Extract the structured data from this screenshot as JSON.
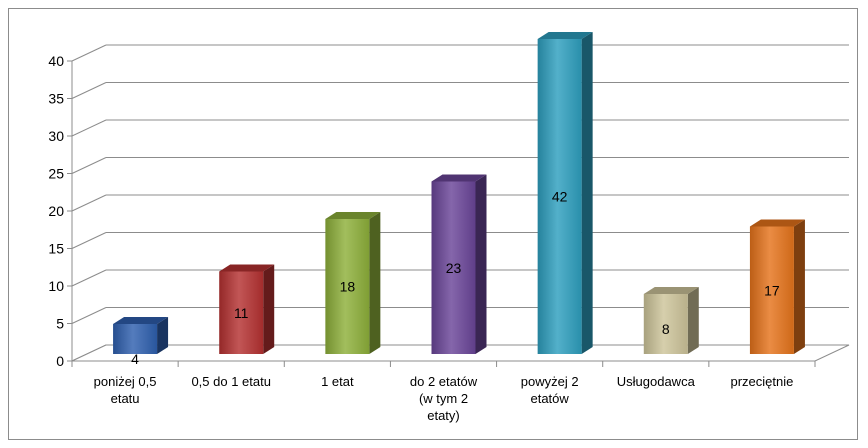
{
  "chart_data": {
    "type": "bar",
    "style": "3d-column",
    "categories": [
      [
        "poniżej 0,5",
        "etatu"
      ],
      [
        "0,5 do 1 etatu"
      ],
      [
        "1 etat"
      ],
      [
        "do 2 etatów",
        "(w tym 2",
        "etaty)"
      ],
      [
        "powyżej 2",
        "etatów"
      ],
      [
        "Usługodawca"
      ],
      [
        "przeciętnie"
      ]
    ],
    "values": [
      4,
      11,
      18,
      23,
      42,
      8,
      17
    ],
    "data_labels": [
      "4",
      "11",
      "18",
      "23",
      "42",
      "8",
      "17"
    ],
    "colors": [
      "#2e5fae",
      "#b53131",
      "#8db03a",
      "#6a4598",
      "#2d9fbe",
      "#cdc49a",
      "#e5731b"
    ],
    "ylim": [
      0,
      40
    ],
    "yticks": [
      0,
      5,
      10,
      15,
      20,
      25,
      30,
      35,
      40
    ],
    "grid": true,
    "legend": "none",
    "title": "",
    "xlabel": "",
    "ylabel": ""
  }
}
